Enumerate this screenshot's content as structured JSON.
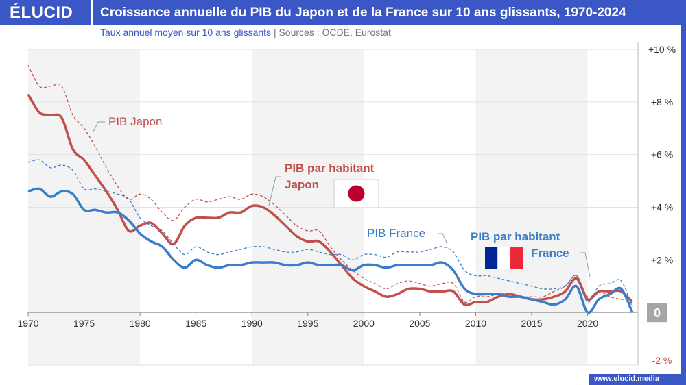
{
  "header": {
    "logo": "ÉLUCID",
    "title": "Croissance annuelle du PIB du Japon et de la France sur 10 ans glissants, 1970-2024"
  },
  "subtitle": {
    "text": "Taux annuel moyen sur 10 ans glissants",
    "sep": "|",
    "sources": "Sources : OCDE, Eurostat"
  },
  "footer": {
    "site": "www.elucid.media"
  },
  "colors": {
    "japan": "#c0504d",
    "france": "#3a7dc9",
    "brand": "#3b57c6",
    "band": "#f3f3f3"
  },
  "chart_data": {
    "type": "line",
    "title": "Croissance annuelle du PIB du Japon et de la France sur 10 ans glissants, 1970-2024",
    "xlim": [
      1970,
      2024.5
    ],
    "ylim": [
      -2,
      10
    ],
    "y_axis_position": "right",
    "yticks": [
      {
        "v": 10,
        "label": "+10 %"
      },
      {
        "v": 8,
        "label": "+8 %"
      },
      {
        "v": 6,
        "label": "+6 %"
      },
      {
        "v": 4,
        "label": "+4 %"
      },
      {
        "v": 2,
        "label": "+2 %"
      },
      {
        "v": 0,
        "label": "0"
      },
      {
        "v": -2,
        "label": "-2 %"
      }
    ],
    "xticks": [
      1970,
      1975,
      1980,
      1985,
      1990,
      1995,
      2000,
      2005,
      2010,
      2015,
      2020
    ],
    "shaded_decades": [
      [
        1970,
        1980
      ],
      [
        1990,
        2000
      ],
      [
        2010,
        2020
      ]
    ],
    "grid": true,
    "x_start": 1970,
    "series": [
      {
        "name": "PIB Japon",
        "color": "#c0504d",
        "style": "dashed",
        "values": [
          9.4,
          8.6,
          8.6,
          8.6,
          7.5,
          7.0,
          6.3,
          5.5,
          4.8,
          4.3,
          4.5,
          4.3,
          3.8,
          3.5,
          4.0,
          4.3,
          4.2,
          4.3,
          4.4,
          4.3,
          4.5,
          4.4,
          4.1,
          3.7,
          3.3,
          3.1,
          3.1,
          2.5,
          2.0,
          1.6,
          1.3,
          1.1,
          0.9,
          1.1,
          1.2,
          1.1,
          1.0,
          1.1,
          1.1,
          0.4,
          0.6,
          0.6,
          0.7,
          0.7,
          0.6,
          0.6,
          0.6,
          0.8,
          1.0,
          1.4,
          0.6,
          0.8,
          0.6,
          0.5,
          0.5
        ]
      },
      {
        "name": "PIB par habitant Japon",
        "color": "#c0504d",
        "style": "solid",
        "values": [
          8.3,
          7.6,
          7.5,
          7.4,
          6.2,
          5.8,
          5.2,
          4.6,
          3.9,
          3.1,
          3.3,
          3.4,
          3.0,
          2.6,
          3.3,
          3.6,
          3.6,
          3.6,
          3.8,
          3.8,
          4.05,
          4.0,
          3.7,
          3.3,
          2.9,
          2.7,
          2.7,
          2.3,
          1.8,
          1.3,
          1.0,
          0.8,
          0.6,
          0.7,
          0.9,
          0.9,
          0.8,
          0.8,
          0.8,
          0.3,
          0.4,
          0.4,
          0.6,
          0.7,
          0.6,
          0.5,
          0.5,
          0.6,
          0.8,
          1.3,
          0.5,
          0.8,
          0.8,
          0.8,
          0.4
        ]
      },
      {
        "name": "PIB France",
        "color": "#3a7dc9",
        "style": "dashed",
        "values": [
          5.7,
          5.8,
          5.5,
          5.6,
          5.4,
          4.7,
          4.7,
          4.6,
          4.5,
          4.3,
          3.6,
          3.3,
          3.1,
          2.6,
          2.2,
          2.5,
          2.3,
          2.2,
          2.3,
          2.4,
          2.5,
          2.5,
          2.4,
          2.3,
          2.3,
          2.4,
          2.3,
          2.2,
          2.2,
          2.0,
          2.2,
          2.2,
          2.1,
          2.3,
          2.3,
          2.3,
          2.4,
          2.5,
          2.3,
          1.6,
          1.4,
          1.4,
          1.3,
          1.2,
          1.1,
          1.0,
          0.9,
          0.9,
          1.0,
          1.4,
          0.4,
          1.0,
          1.1,
          1.2,
          0.2
        ]
      },
      {
        "name": "PIB par habitant France",
        "color": "#3a7dc9",
        "style": "solid",
        "values": [
          4.6,
          4.7,
          4.4,
          4.6,
          4.5,
          3.9,
          3.9,
          3.8,
          3.8,
          3.5,
          3.0,
          2.7,
          2.5,
          2.0,
          1.7,
          2.0,
          1.8,
          1.7,
          1.8,
          1.8,
          1.9,
          1.9,
          1.9,
          1.8,
          1.8,
          1.9,
          1.8,
          1.8,
          1.8,
          1.6,
          1.8,
          1.8,
          1.7,
          1.8,
          1.8,
          1.8,
          1.8,
          1.9,
          1.6,
          0.9,
          0.7,
          0.7,
          0.7,
          0.6,
          0.6,
          0.5,
          0.4,
          0.3,
          0.5,
          1.0,
          0.0,
          0.5,
          0.7,
          0.9,
          0.0
        ]
      }
    ],
    "annotations": {
      "pib_japon": "PIB Japon",
      "pib_hab_japon_1": "PIB par habitant",
      "pib_hab_japon_2": "Japon",
      "pib_france": "PIB France",
      "pib_hab_france_1": "PIB par habitant",
      "pib_hab_france_2": "France"
    }
  }
}
